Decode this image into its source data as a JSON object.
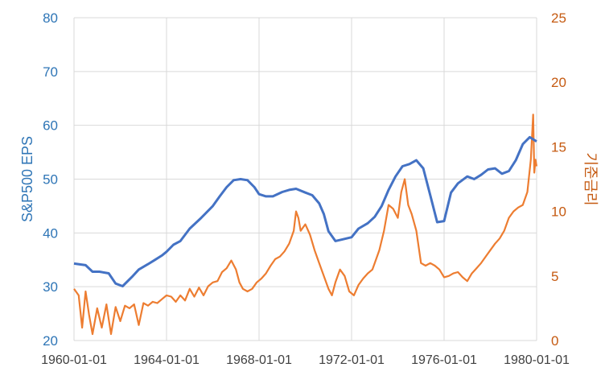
{
  "chart_data": {
    "type": "line",
    "title": "",
    "xlabel": "",
    "y_left": {
      "label": "S&P500 EPS",
      "ylim": [
        20,
        80
      ],
      "ticks": [
        "20",
        "30",
        "40",
        "50",
        "60",
        "70",
        "80"
      ]
    },
    "y_right": {
      "label": "기준금리",
      "ylim": [
        0,
        25
      ],
      "ticks": [
        "0",
        "5",
        "10",
        "15",
        "20",
        "25"
      ]
    },
    "x_ticks": [
      "1960-01-01",
      "1964-01-01",
      "1968-01-01",
      "1972-01-01",
      "1976-01-01",
      "1980-01-01"
    ],
    "xlim": [
      1960.0,
      1980.0
    ],
    "grid": true,
    "legend": "none",
    "colors": {
      "eps": "#4472C4",
      "rate": "#ED7D31",
      "left_axis_text": "#2E75B6",
      "right_axis_text": "#C55A11",
      "grid": "#D9D9D9"
    },
    "series": [
      {
        "axis": "left",
        "color": "#4472C4",
        "x": [
          1960.0,
          1960.5,
          1960.8,
          1961.1,
          1961.5,
          1961.8,
          1962.1,
          1962.5,
          1962.8,
          1963.2,
          1963.5,
          1963.8,
          1964.0,
          1964.3,
          1964.6,
          1965.0,
          1965.5,
          1966.0,
          1966.3,
          1966.6,
          1966.9,
          1967.2,
          1967.5,
          1967.8,
          1968.0,
          1968.3,
          1968.6,
          1969.0,
          1969.3,
          1969.6,
          1970.0,
          1970.3,
          1970.6,
          1970.8,
          1971.0,
          1971.3,
          1971.6,
          1972.0,
          1972.3,
          1972.7,
          1973.0,
          1973.3,
          1973.6,
          1973.9,
          1974.2,
          1974.5,
          1974.8,
          1975.1,
          1975.4,
          1975.7,
          1976.0,
          1976.3,
          1976.6,
          1977.0,
          1977.3,
          1977.6,
          1977.9,
          1978.2,
          1978.5,
          1978.8,
          1979.1,
          1979.4,
          1979.7,
          1980.0
        ],
        "values": [
          34.3,
          34.0,
          32.8,
          32.8,
          32.5,
          30.6,
          30.1,
          31.8,
          33.2,
          34.2,
          35.0,
          35.8,
          36.5,
          37.8,
          38.5,
          40.8,
          42.8,
          45.0,
          46.8,
          48.5,
          49.8,
          50.0,
          49.8,
          48.5,
          47.2,
          46.8,
          46.8,
          47.6,
          48.0,
          48.2,
          47.5,
          47.0,
          45.5,
          43.5,
          40.3,
          38.5,
          38.8,
          39.2,
          40.8,
          41.8,
          43.0,
          45.0,
          48.0,
          50.5,
          52.4,
          52.8,
          53.5,
          52.0,
          47.0,
          42.0,
          42.2,
          47.5,
          49.2,
          50.5,
          50.0,
          50.8,
          51.8,
          52.0,
          51.0,
          51.5,
          53.5,
          56.5,
          57.8,
          57.0
        ]
      },
      {
        "axis": "right",
        "color": "#ED7D31",
        "x": [
          1960.0,
          1960.2,
          1960.35,
          1960.5,
          1960.65,
          1960.8,
          1961.0,
          1961.2,
          1961.4,
          1961.6,
          1961.8,
          1962.0,
          1962.2,
          1962.4,
          1962.6,
          1962.8,
          1963.0,
          1963.2,
          1963.4,
          1963.6,
          1963.8,
          1964.0,
          1964.2,
          1964.4,
          1964.6,
          1964.8,
          1965.0,
          1965.2,
          1965.4,
          1965.6,
          1965.8,
          1966.0,
          1966.2,
          1966.4,
          1966.6,
          1966.8,
          1967.0,
          1967.15,
          1967.3,
          1967.5,
          1967.7,
          1967.9,
          1968.1,
          1968.3,
          1968.5,
          1968.7,
          1968.9,
          1969.1,
          1969.3,
          1969.5,
          1969.6,
          1969.7,
          1969.8,
          1970.0,
          1970.2,
          1970.4,
          1970.6,
          1970.8,
          1971.0,
          1971.15,
          1971.3,
          1971.5,
          1971.7,
          1971.9,
          1972.1,
          1972.3,
          1972.5,
          1972.7,
          1972.9,
          1973.0,
          1973.2,
          1973.4,
          1973.6,
          1973.8,
          1974.0,
          1974.15,
          1974.3,
          1974.45,
          1974.6,
          1974.8,
          1975.0,
          1975.2,
          1975.4,
          1975.6,
          1975.8,
          1976.0,
          1976.2,
          1976.4,
          1976.6,
          1976.8,
          1977.0,
          1977.2,
          1977.4,
          1977.6,
          1977.8,
          1978.0,
          1978.2,
          1978.4,
          1978.6,
          1978.8,
          1979.0,
          1979.2,
          1979.4,
          1979.6,
          1979.75,
          1979.85,
          1979.9,
          1979.95,
          1980.0
        ],
        "values": [
          4.0,
          3.5,
          1.0,
          3.8,
          2.0,
          0.5,
          2.5,
          1.0,
          2.8,
          0.5,
          2.6,
          1.5,
          2.7,
          2.5,
          2.8,
          1.2,
          2.9,
          2.7,
          3.0,
          2.9,
          3.2,
          3.5,
          3.4,
          3.0,
          3.5,
          3.1,
          4.0,
          3.4,
          4.1,
          3.5,
          4.2,
          4.5,
          4.6,
          5.3,
          5.6,
          6.2,
          5.5,
          4.5,
          4.0,
          3.8,
          4.0,
          4.5,
          4.8,
          5.2,
          5.8,
          6.3,
          6.5,
          6.9,
          7.5,
          8.5,
          10.0,
          9.5,
          8.5,
          9.0,
          8.2,
          7.0,
          6.0,
          5.0,
          4.0,
          3.5,
          4.5,
          5.5,
          5.0,
          3.8,
          3.5,
          4.3,
          4.8,
          5.2,
          5.5,
          6.0,
          7.0,
          8.5,
          10.5,
          10.2,
          9.5,
          11.5,
          12.5,
          10.5,
          9.8,
          8.5,
          6.0,
          5.8,
          6.0,
          5.8,
          5.5,
          4.9,
          5.0,
          5.2,
          5.3,
          4.9,
          4.6,
          5.2,
          5.6,
          6.0,
          6.5,
          7.0,
          7.5,
          7.9,
          8.5,
          9.5,
          10.0,
          10.3,
          10.5,
          11.5,
          14.0,
          17.5,
          13.0,
          14.0,
          13.5
        ]
      }
    ]
  }
}
